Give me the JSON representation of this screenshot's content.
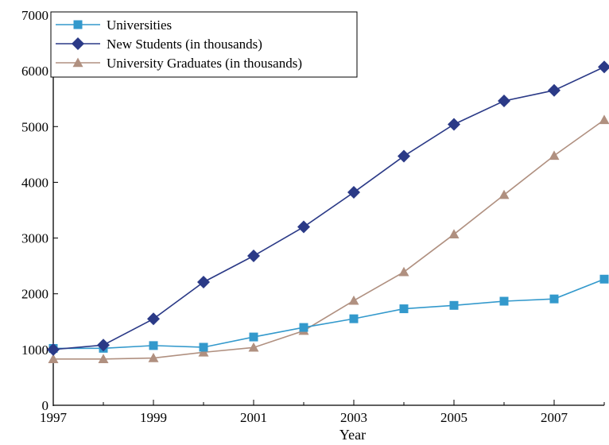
{
  "chart_data": {
    "type": "line",
    "title": "",
    "xlabel": "Year",
    "ylabel": "",
    "x": [
      1997,
      1998,
      1999,
      2000,
      2001,
      2002,
      2003,
      2004,
      2005,
      2006,
      2007,
      2008
    ],
    "x_ticks": [
      "1997",
      "1999",
      "2001",
      "2003",
      "2005",
      "2007"
    ],
    "y_ticks": [
      "0",
      "1000",
      "2000",
      "3000",
      "4000",
      "5000",
      "6000",
      "7000"
    ],
    "xlim": [
      1997,
      2008
    ],
    "ylim": [
      0,
      7000
    ],
    "grid": false,
    "legend_position": "top-left",
    "series": [
      {
        "name": "Universities",
        "color": "#3399cc",
        "marker": "square",
        "values": [
          1020,
          1022,
          1071,
          1041,
          1225,
          1396,
          1552,
          1731,
          1792,
          1867,
          1908,
          2263
        ]
      },
      {
        "name": "New Students (in thousands)",
        "color": "#2b3a87",
        "marker": "diamond",
        "values": [
          1000,
          1080,
          1550,
          2210,
          2680,
          3200,
          3820,
          4470,
          5040,
          5460,
          5650,
          6070
        ]
      },
      {
        "name": "University Graduates (in thousands)",
        "color": "#b09080",
        "marker": "triangle",
        "values": [
          830,
          830,
          848,
          950,
          1036,
          1337,
          1877,
          2391,
          3068,
          3775,
          4478,
          5120
        ]
      }
    ]
  }
}
